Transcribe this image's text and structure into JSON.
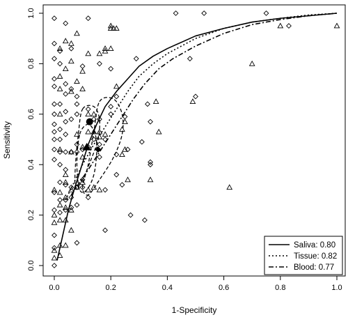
{
  "chart_data": {
    "type": "scatter",
    "title": "",
    "xlabel": "1-Specificity",
    "ylabel": "Sensitivity",
    "xlim": [
      0,
      1
    ],
    "ylim": [
      0,
      1
    ],
    "x_ticks": [
      "0.0",
      "0.2",
      "0.4",
      "0.6",
      "0.8",
      "1.0"
    ],
    "y_ticks": [
      "0.0",
      "0.2",
      "0.4",
      "0.6",
      "0.8",
      "1.0"
    ],
    "grid": false,
    "legend_position": "bottom-right",
    "legend": [
      {
        "label": "Saliva: 0.80",
        "linestyle": "solid"
      },
      {
        "label": "Tissue: 0.82",
        "linestyle": "dotted"
      },
      {
        "label": "Blood: 0.77",
        "linestyle": "dotdash"
      }
    ],
    "studies": {
      "diamond": [
        [
          0.0,
          0.98
        ],
        [
          0.0,
          0.88
        ],
        [
          0.0,
          0.82
        ],
        [
          0.0,
          0.74
        ],
        [
          0.0,
          0.71
        ],
        [
          0.0,
          0.64
        ],
        [
          0.0,
          0.6
        ],
        [
          0.0,
          0.56
        ],
        [
          0.0,
          0.53
        ],
        [
          0.0,
          0.5
        ],
        [
          0.0,
          0.46
        ],
        [
          0.0,
          0.42
        ],
        [
          0.0,
          0.29
        ],
        [
          0.0,
          0.22
        ],
        [
          0.0,
          0.12
        ],
        [
          0.0,
          0.07
        ],
        [
          0.0,
          0.0
        ],
        [
          0.02,
          0.85
        ],
        [
          0.02,
          0.8
        ],
        [
          0.02,
          0.64
        ],
        [
          0.02,
          0.54
        ],
        [
          0.02,
          0.5
        ],
        [
          0.02,
          0.45
        ],
        [
          0.02,
          0.4
        ],
        [
          0.02,
          0.33
        ],
        [
          0.02,
          0.26
        ],
        [
          0.02,
          0.21
        ],
        [
          0.04,
          0.96
        ],
        [
          0.04,
          0.72
        ],
        [
          0.04,
          0.68
        ],
        [
          0.04,
          0.61
        ],
        [
          0.04,
          0.57
        ],
        [
          0.04,
          0.52
        ],
        [
          0.04,
          0.45
        ],
        [
          0.04,
          0.38
        ],
        [
          0.04,
          0.32
        ],
        [
          0.04,
          0.26
        ],
        [
          0.04,
          0.22
        ],
        [
          0.06,
          0.86
        ],
        [
          0.06,
          0.7
        ],
        [
          0.06,
          0.58
        ],
        [
          0.06,
          0.45
        ],
        [
          0.06,
          0.31
        ],
        [
          0.06,
          0.27
        ],
        [
          0.06,
          0.23
        ],
        [
          0.08,
          0.67
        ],
        [
          0.08,
          0.64
        ],
        [
          0.08,
          0.6
        ],
        [
          0.08,
          0.48
        ],
        [
          0.08,
          0.45
        ],
        [
          0.08,
          0.31
        ],
        [
          0.08,
          0.24
        ],
        [
          0.08,
          0.09
        ],
        [
          0.1,
          0.79
        ],
        [
          0.1,
          0.46
        ],
        [
          0.1,
          0.34
        ],
        [
          0.1,
          0.31
        ],
        [
          0.12,
          0.98
        ],
        [
          0.12,
          0.62
        ],
        [
          0.12,
          0.47
        ],
        [
          0.12,
          0.27
        ],
        [
          0.14,
          0.58
        ],
        [
          0.14,
          0.5
        ],
        [
          0.16,
          0.8
        ],
        [
          0.16,
          0.58
        ],
        [
          0.16,
          0.48
        ],
        [
          0.16,
          0.43
        ],
        [
          0.18,
          0.5
        ],
        [
          0.18,
          0.3
        ],
        [
          0.18,
          0.14
        ],
        [
          0.2,
          0.78
        ],
        [
          0.2,
          0.63
        ],
        [
          0.2,
          0.6
        ],
        [
          0.22,
          0.67
        ],
        [
          0.22,
          0.44
        ],
        [
          0.22,
          0.36
        ],
        [
          0.24,
          0.32
        ],
        [
          0.25,
          0.59
        ],
        [
          0.26,
          0.46
        ],
        [
          0.27,
          0.2
        ],
        [
          0.29,
          0.82
        ],
        [
          0.31,
          0.49
        ],
        [
          0.32,
          0.18
        ],
        [
          0.33,
          0.64
        ],
        [
          0.34,
          0.57
        ],
        [
          0.34,
          0.41
        ],
        [
          0.34,
          0.4
        ],
        [
          0.43,
          1.0
        ],
        [
          0.48,
          0.82
        ],
        [
          0.5,
          0.67
        ],
        [
          0.53,
          1.0
        ],
        [
          0.75,
          1.0
        ],
        [
          0.83,
          0.95
        ]
      ],
      "triangle": [
        [
          0.0,
          0.3
        ],
        [
          0.0,
          0.2
        ],
        [
          0.0,
          0.17
        ],
        [
          0.0,
          0.06
        ],
        [
          0.0,
          0.03
        ],
        [
          0.02,
          0.86
        ],
        [
          0.02,
          0.75
        ],
        [
          0.02,
          0.7
        ],
        [
          0.02,
          0.6
        ],
        [
          0.02,
          0.46
        ],
        [
          0.02,
          0.29
        ],
        [
          0.02,
          0.24
        ],
        [
          0.02,
          0.18
        ],
        [
          0.02,
          0.08
        ],
        [
          0.02,
          0.04
        ],
        [
          0.04,
          0.89
        ],
        [
          0.04,
          0.78
        ],
        [
          0.04,
          0.36
        ],
        [
          0.04,
          0.33
        ],
        [
          0.04,
          0.27
        ],
        [
          0.04,
          0.23
        ],
        [
          0.04,
          0.18
        ],
        [
          0.04,
          0.08
        ],
        [
          0.06,
          0.88
        ],
        [
          0.06,
          0.81
        ],
        [
          0.06,
          0.69
        ],
        [
          0.06,
          0.45
        ],
        [
          0.06,
          0.3
        ],
        [
          0.06,
          0.22
        ],
        [
          0.06,
          0.14
        ],
        [
          0.08,
          0.92
        ],
        [
          0.08,
          0.73
        ],
        [
          0.08,
          0.52
        ],
        [
          0.08,
          0.31
        ],
        [
          0.1,
          0.77
        ],
        [
          0.1,
          0.7
        ],
        [
          0.1,
          0.47
        ],
        [
          0.1,
          0.43
        ],
        [
          0.1,
          0.33
        ],
        [
          0.12,
          0.84
        ],
        [
          0.12,
          0.6
        ],
        [
          0.12,
          0.53
        ],
        [
          0.12,
          0.3
        ],
        [
          0.14,
          0.6
        ],
        [
          0.14,
          0.53
        ],
        [
          0.14,
          0.31
        ],
        [
          0.16,
          0.84
        ],
        [
          0.16,
          0.53
        ],
        [
          0.16,
          0.51
        ],
        [
          0.16,
          0.3
        ],
        [
          0.18,
          0.86
        ],
        [
          0.18,
          0.85
        ],
        [
          0.18,
          0.52
        ],
        [
          0.2,
          0.95
        ],
        [
          0.2,
          0.94
        ],
        [
          0.2,
          0.86
        ],
        [
          0.21,
          0.94
        ],
        [
          0.22,
          0.94
        ],
        [
          0.22,
          0.71
        ],
        [
          0.24,
          0.54
        ],
        [
          0.24,
          0.44
        ],
        [
          0.25,
          0.57
        ],
        [
          0.25,
          0.46
        ],
        [
          0.26,
          0.34
        ],
        [
          0.34,
          0.34
        ],
        [
          0.36,
          0.65
        ],
        [
          0.37,
          0.53
        ],
        [
          0.49,
          0.65
        ],
        [
          0.62,
          0.31
        ],
        [
          0.7,
          0.8
        ],
        [
          0.8,
          0.95
        ],
        [
          1.0,
          0.95
        ]
      ]
    },
    "summary_points": [
      {
        "marker": "circle",
        "x": 0.125,
        "y": 0.57
      },
      {
        "marker": "triangle",
        "x": 0.115,
        "y": 0.47
      },
      {
        "marker": "diamond",
        "x": 0.155,
        "y": 0.46
      }
    ],
    "curves": [
      {
        "name": "Saliva",
        "linestyle": "solid",
        "points": [
          [
            0.01,
            0.02
          ],
          [
            0.03,
            0.12
          ],
          [
            0.05,
            0.22
          ],
          [
            0.07,
            0.3
          ],
          [
            0.09,
            0.37
          ],
          [
            0.12,
            0.48
          ],
          [
            0.15,
            0.56
          ],
          [
            0.18,
            0.63
          ],
          [
            0.22,
            0.69
          ],
          [
            0.26,
            0.74
          ],
          [
            0.3,
            0.79
          ],
          [
            0.35,
            0.83
          ],
          [
            0.4,
            0.86
          ],
          [
            0.5,
            0.91
          ],
          [
            0.6,
            0.94
          ],
          [
            0.7,
            0.965
          ],
          [
            0.8,
            0.98
          ],
          [
            0.9,
            0.99
          ],
          [
            1.0,
            1.0
          ]
        ]
      },
      {
        "name": "Tissue",
        "linestyle": "dotted",
        "points": [
          [
            0.04,
            0.26
          ],
          [
            0.07,
            0.33
          ],
          [
            0.1,
            0.4
          ],
          [
            0.14,
            0.48
          ],
          [
            0.18,
            0.55
          ],
          [
            0.22,
            0.62
          ],
          [
            0.26,
            0.69
          ],
          [
            0.3,
            0.75
          ],
          [
            0.35,
            0.8
          ],
          [
            0.4,
            0.84
          ],
          [
            0.5,
            0.9
          ],
          [
            0.6,
            0.94
          ],
          [
            0.7,
            0.965
          ],
          [
            0.8,
            0.98
          ],
          [
            0.9,
            0.993
          ],
          [
            1.0,
            1.0
          ]
        ]
      },
      {
        "name": "Blood",
        "linestyle": "dotdash",
        "points": [
          [
            0.06,
            0.28
          ],
          [
            0.09,
            0.33
          ],
          [
            0.12,
            0.38
          ],
          [
            0.16,
            0.45
          ],
          [
            0.2,
            0.52
          ],
          [
            0.24,
            0.59
          ],
          [
            0.28,
            0.66
          ],
          [
            0.32,
            0.72
          ],
          [
            0.37,
            0.78
          ],
          [
            0.42,
            0.82
          ],
          [
            0.5,
            0.87
          ],
          [
            0.6,
            0.92
          ],
          [
            0.7,
            0.955
          ],
          [
            0.8,
            0.975
          ],
          [
            0.9,
            0.99
          ],
          [
            1.0,
            1.0
          ]
        ]
      }
    ],
    "confidence_regions": [
      {
        "name": "Saliva",
        "linestyle": "dashed",
        "points": [
          [
            0.1,
            0.62
          ],
          [
            0.14,
            0.63
          ],
          [
            0.16,
            0.58
          ],
          [
            0.155,
            0.5
          ],
          [
            0.13,
            0.42
          ],
          [
            0.1,
            0.34
          ],
          [
            0.075,
            0.31
          ],
          [
            0.075,
            0.4
          ],
          [
            0.085,
            0.52
          ]
        ]
      },
      {
        "name": "Tissue",
        "linestyle": "dashed",
        "points": [
          [
            0.09,
            0.52
          ],
          [
            0.12,
            0.56
          ],
          [
            0.145,
            0.52
          ],
          [
            0.15,
            0.45
          ],
          [
            0.14,
            0.36
          ],
          [
            0.115,
            0.3
          ],
          [
            0.09,
            0.3
          ],
          [
            0.08,
            0.4
          ]
        ]
      },
      {
        "name": "Blood",
        "linestyle": "dashed",
        "points": [
          [
            0.16,
            0.65
          ],
          [
            0.21,
            0.66
          ],
          [
            0.24,
            0.6
          ],
          [
            0.24,
            0.52
          ],
          [
            0.21,
            0.43
          ],
          [
            0.16,
            0.34
          ],
          [
            0.12,
            0.28
          ],
          [
            0.1,
            0.31
          ],
          [
            0.12,
            0.4
          ],
          [
            0.14,
            0.53
          ]
        ]
      }
    ]
  }
}
